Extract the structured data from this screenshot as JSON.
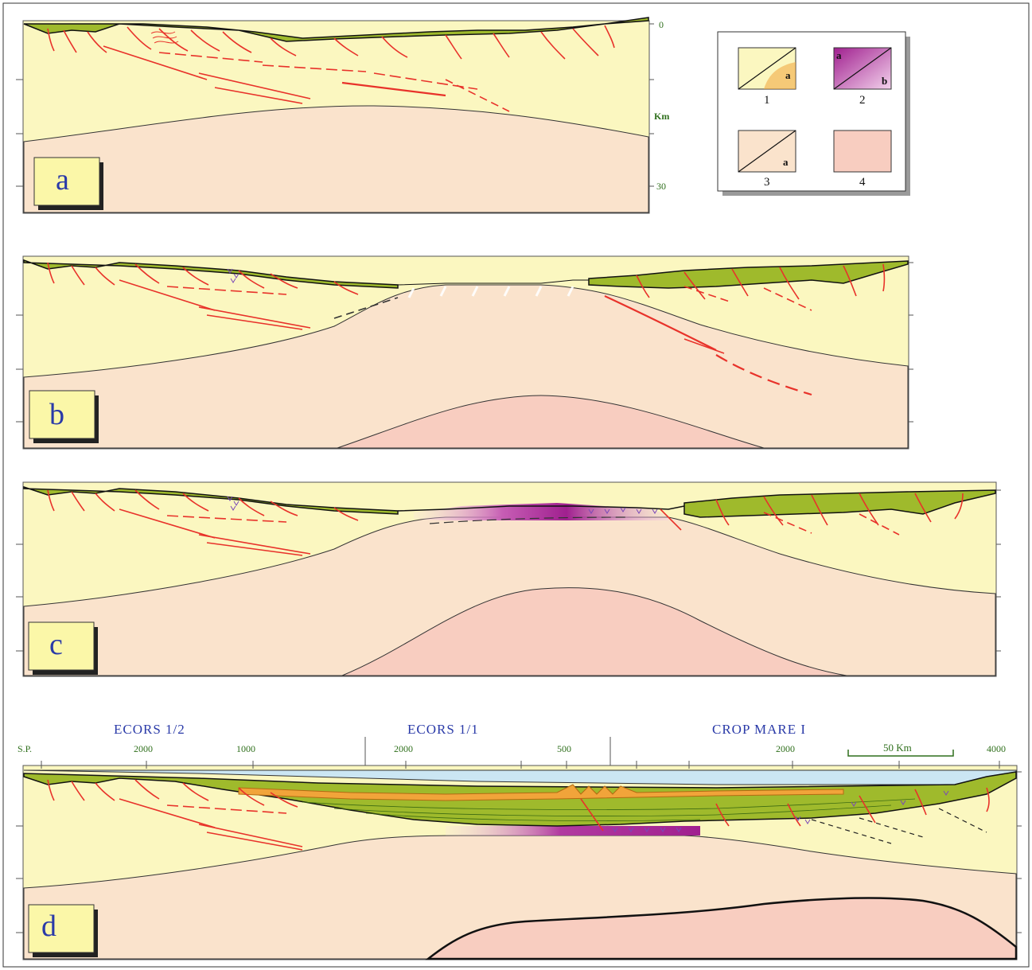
{
  "colors": {
    "upper_crust": "#fbf7c0",
    "lower_crust": "#fae3cc",
    "mantle": "#f8cdc0",
    "sediment_green": "#9fba2c",
    "sediment_orange": "#f1a43a",
    "water": "#cbe6f3",
    "fault": "#e8322a",
    "oceanic": "#a0208f",
    "label_blue": "#2a3aa8",
    "axis_green": "#2f6f1c"
  },
  "panels": {
    "a": {
      "letter": "a"
    },
    "b": {
      "letter": "b"
    },
    "c": {
      "letter": "c"
    },
    "d": {
      "letter": "d"
    }
  },
  "depth_axis": {
    "top": "0",
    "unit": "Km",
    "bottom": "30"
  },
  "legend": {
    "items": [
      {
        "number": "1",
        "sub": [
          "a"
        ]
      },
      {
        "number": "2",
        "sub": [
          "a",
          "b"
        ]
      },
      {
        "number": "3",
        "sub": [
          "a"
        ]
      },
      {
        "number": "4",
        "sub": []
      }
    ]
  },
  "profiles": {
    "sp_label": "S.P.",
    "names": [
      "ECORS 1/2",
      "ECORS 1/1",
      "CROP MARE I"
    ],
    "shot_points": [
      "2000",
      "1000",
      "2000",
      "500",
      "2000",
      "4000"
    ],
    "scale_bar": "50 Km"
  }
}
